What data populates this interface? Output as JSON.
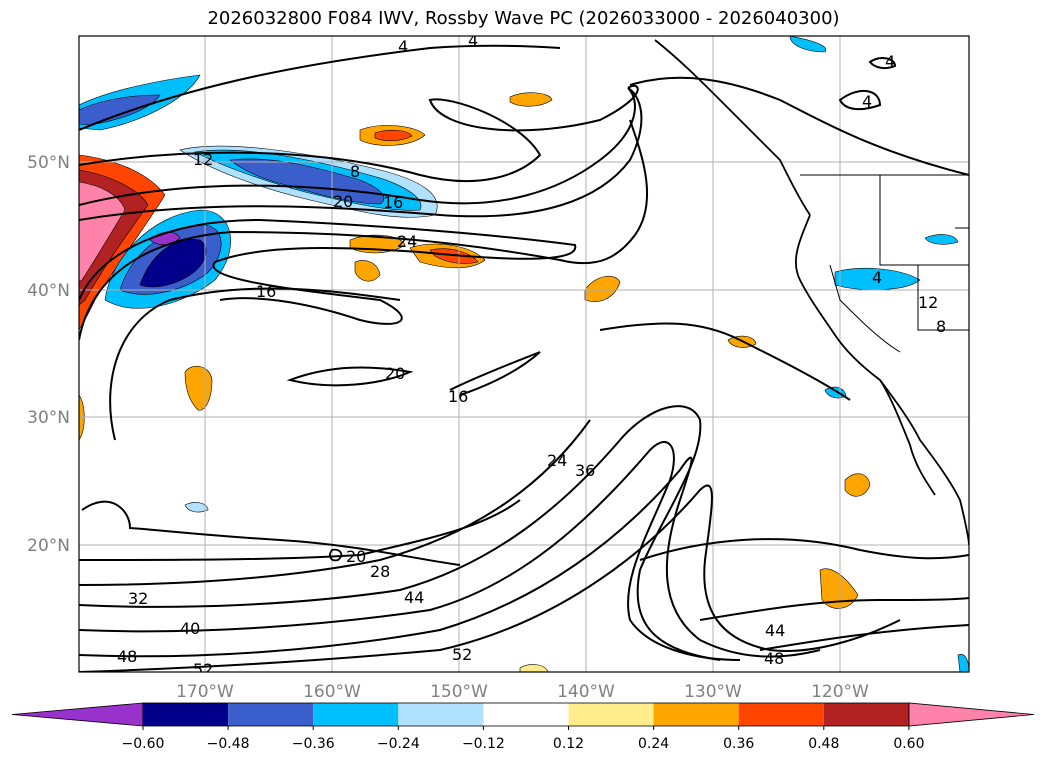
{
  "title": "2026032800 F084 IWV, Rossby Wave PC (2026033000 - 2026040300)",
  "lat_labels": [
    "50°N",
    "40°N",
    "30°N",
    "20°N"
  ],
  "lon_labels": [
    "170°W",
    "160°W",
    "150°W",
    "140°W",
    "130°W",
    "120°W"
  ],
  "contour_labels": [
    "4",
    "4",
    "4",
    "4",
    "12",
    "8",
    "20",
    "16",
    "24",
    "16",
    "20",
    "16",
    "24",
    "36",
    "20",
    "28",
    "32",
    "40",
    "44",
    "48",
    "52",
    "52",
    "44",
    "48",
    "12",
    "8",
    "4"
  ],
  "colorbar": {
    "colors": [
      "#9932cc",
      "#00008b",
      "#3a5fcd",
      "#00bfff",
      "#b0e2ff",
      "#ffffff",
      "#ffec8b",
      "#ffa500",
      "#ff4500",
      "#b22222",
      "#ff82ab"
    ],
    "ticks": [
      "−0.60",
      "−0.48",
      "−0.36",
      "−0.24",
      "−0.12",
      "0.12",
      "0.24",
      "0.36",
      "0.48",
      "0.60"
    ]
  }
}
